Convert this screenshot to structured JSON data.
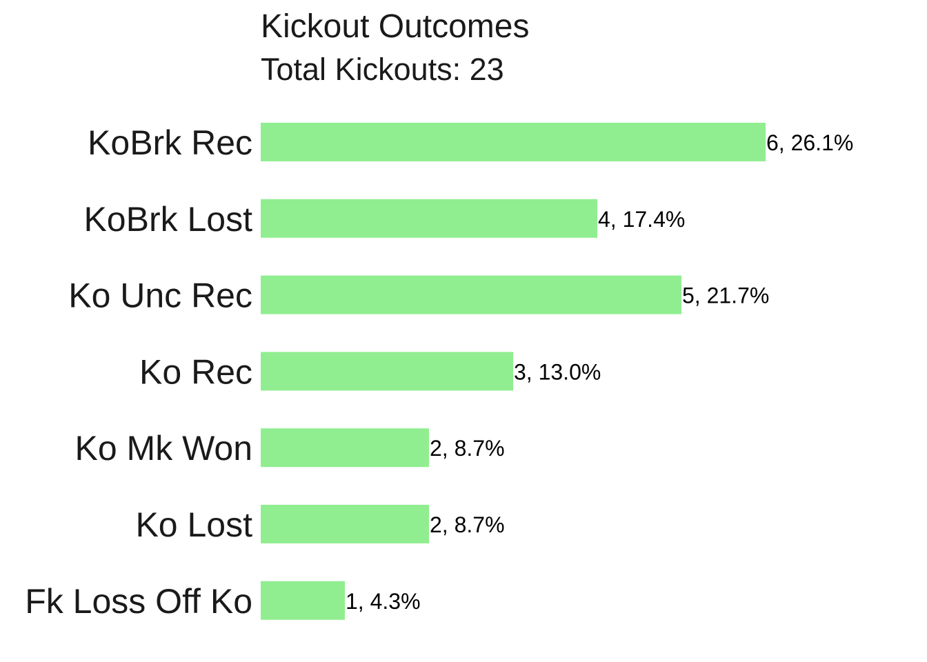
{
  "chart_data": {
    "type": "bar",
    "orientation": "horizontal",
    "title": "Kickout Outcomes",
    "subtitle": "Total Kickouts: 23",
    "categories": [
      "KoBrk Rec",
      "KoBrk Lost",
      "Ko Unc Rec",
      "Ko Rec",
      "Ko Mk Won",
      "Ko Lost",
      "Fk Loss Off Ko"
    ],
    "values": [
      6,
      4,
      5,
      3,
      2,
      2,
      1
    ],
    "data_labels": [
      "6, 26.1%",
      "4, 17.4%",
      "5, 21.7%",
      "3, 13.0%",
      "2, 8.7%",
      "2, 8.7%",
      "1, 4.3%"
    ],
    "xlim": [
      0,
      6
    ],
    "grid": false,
    "legend": "none",
    "bar_color": "#90ee90"
  }
}
